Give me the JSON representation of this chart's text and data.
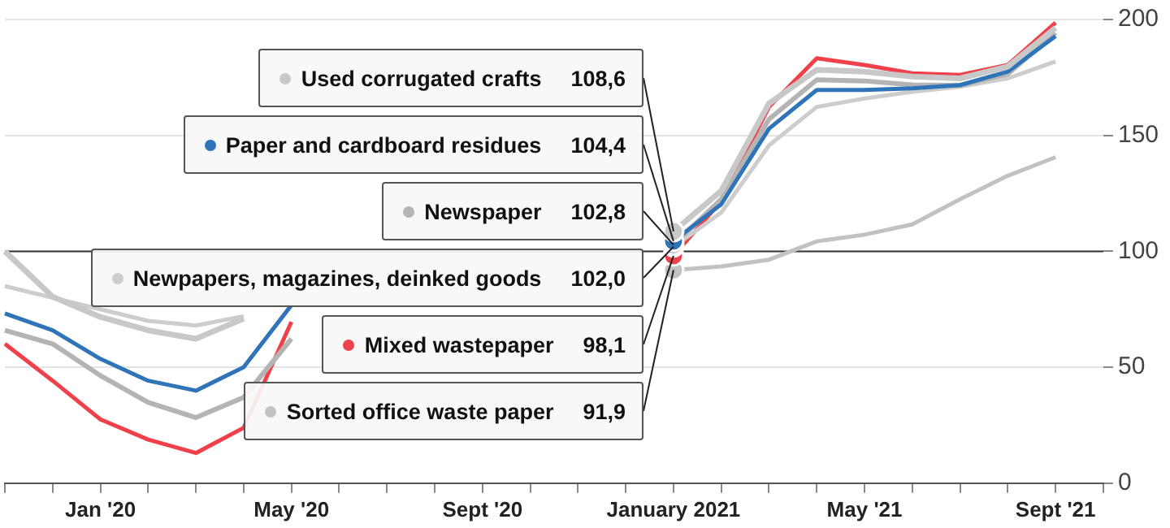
{
  "chart_data": {
    "type": "line",
    "categories": [
      null,
      null,
      "Jan '20",
      null,
      null,
      null,
      "May '20",
      null,
      null,
      null,
      "Sept '20",
      null,
      null,
      null,
      "January 2021",
      null,
      null,
      null,
      "May '21",
      null,
      null,
      null,
      "Sept '21",
      null
    ],
    "series": [
      {
        "name": "Used corrugated crafts",
        "color": "#c8c8c8",
        "values": [
          100.0,
          80.4,
          71.7,
          65.9,
          62.3,
          71.0,
          null,
          null,
          null,
          null,
          null,
          null,
          null,
          null,
          108.6,
          126.1,
          163.8,
          178.3,
          177.5,
          175.4,
          174.6,
          179.7,
          196.4,
          null
        ],
        "value_labels": [
          null,
          null,
          null,
          null,
          null,
          null,
          null,
          null,
          null,
          null,
          null,
          null,
          null,
          null,
          "108,6",
          null,
          null,
          null,
          null,
          null,
          null,
          null,
          null,
          null
        ]
      },
      {
        "name": "Paper and cardboard residues",
        "color": "#2f73b9",
        "values": [
          73.2,
          65.9,
          53.6,
          44.2,
          39.9,
          50.0,
          76.8,
          null,
          null,
          null,
          null,
          null,
          null,
          null,
          104.4,
          120.3,
          152.9,
          169.6,
          169.6,
          170.3,
          171.7,
          177.5,
          192.8,
          null
        ],
        "value_labels": [
          null,
          null,
          null,
          null,
          null,
          null,
          null,
          null,
          null,
          null,
          null,
          null,
          null,
          null,
          "104,4",
          null,
          null,
          null,
          null,
          null,
          null,
          null,
          null,
          null
        ]
      },
      {
        "name": "Newspaper",
        "color": "#b4b4b4",
        "values": [
          65.9,
          60.1,
          46.4,
          34.8,
          28.3,
          37.0,
          62.3,
          null,
          null,
          null,
          null,
          null,
          null,
          null,
          102.8,
          122.5,
          157.0,
          174.0,
          173.5,
          171.8,
          171.6,
          176.5,
          194.2,
          null
        ],
        "value_labels": [
          null,
          null,
          null,
          null,
          null,
          null,
          null,
          null,
          null,
          null,
          null,
          null,
          null,
          null,
          "102,8",
          null,
          null,
          null,
          null,
          null,
          null,
          null,
          null,
          null
        ]
      },
      {
        "name": "Newpapers, magazines, deinked goods",
        "color": "#cdcdcd",
        "values": [
          85,
          80,
          75,
          70,
          68,
          72,
          null,
          null,
          null,
          null,
          null,
          null,
          null,
          null,
          102.0,
          116.7,
          145.7,
          162.3,
          165.9,
          168.8,
          171.0,
          174.6,
          181.9,
          null
        ],
        "value_labels": [
          null,
          null,
          null,
          null,
          null,
          null,
          null,
          null,
          null,
          null,
          null,
          null,
          null,
          null,
          "102,0",
          null,
          null,
          null,
          null,
          null,
          null,
          null,
          null,
          null
        ]
      },
      {
        "name": "Mixed wastepaper",
        "color": "#f0404a",
        "values": [
          60.1,
          44.2,
          27.5,
          18.8,
          13.0,
          23.9,
          69.6,
          null,
          null,
          null,
          null,
          null,
          null,
          null,
          98.1,
          121.7,
          162.3,
          183.3,
          180.4,
          176.8,
          176.1,
          180.4,
          198.6,
          null
        ],
        "value_labels": [
          null,
          null,
          null,
          null,
          null,
          null,
          null,
          null,
          null,
          null,
          null,
          null,
          null,
          null,
          "98,1",
          null,
          null,
          null,
          null,
          null,
          null,
          null,
          null,
          null
        ]
      },
      {
        "name": "Sorted office waste paper",
        "color": "#c2c2c2",
        "values": [
          null,
          null,
          null,
          null,
          null,
          null,
          null,
          null,
          null,
          null,
          null,
          null,
          null,
          null,
          91.9,
          93.5,
          96.4,
          104.3,
          107.2,
          111.6,
          122.5,
          132.6,
          140.6,
          null
        ],
        "value_labels": [
          null,
          null,
          null,
          null,
          null,
          null,
          null,
          null,
          null,
          null,
          null,
          null,
          null,
          null,
          "91,9",
          null,
          null,
          null,
          null,
          null,
          null,
          null,
          null,
          null
        ]
      }
    ],
    "legend": "top left",
    "ylim": [
      0,
      200
    ],
    "yticks": [
      0,
      50,
      100,
      150,
      200
    ],
    "grid": "y",
    "marker": "none",
    "line_style": "solid",
    "ref_lines": [
      {
        "axis": "y",
        "value": 100,
        "color": "#333333"
      }
    ]
  }
}
